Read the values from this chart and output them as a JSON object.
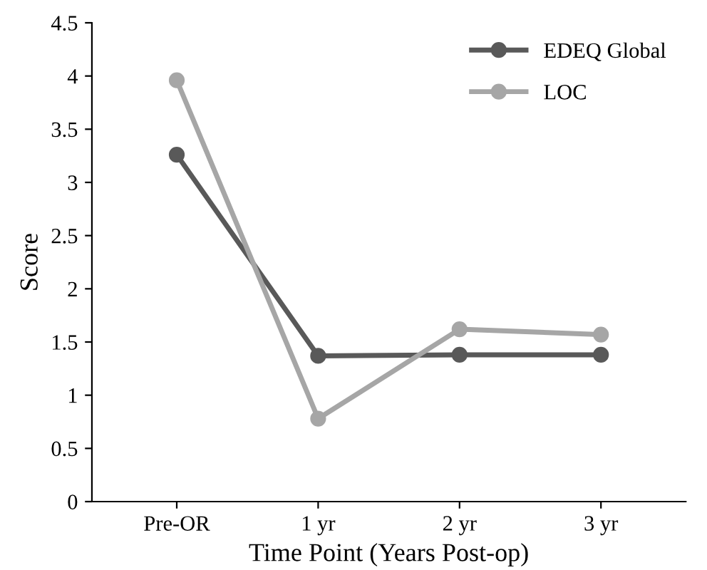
{
  "chart_data": {
    "type": "line",
    "xlabel": "Time Point (Years Post-op)",
    "ylabel": "Score",
    "categories": [
      "Pre-OR",
      "1 yr",
      "2 yr",
      "3 yr"
    ],
    "series": [
      {
        "name": "EDEQ Global",
        "color": "#595959",
        "values": [
          3.26,
          1.37,
          1.38,
          1.38
        ]
      },
      {
        "name": "LOC",
        "color": "#a6a6a6",
        "values": [
          3.96,
          0.78,
          1.62,
          1.57
        ]
      }
    ],
    "ylim": [
      0,
      4.5
    ],
    "yticks": [
      0,
      0.5,
      1,
      1.5,
      2,
      2.5,
      3,
      3.5,
      4,
      4.5
    ],
    "marker": "circle",
    "line_style": "solid",
    "legend": "top right",
    "grid": false
  }
}
